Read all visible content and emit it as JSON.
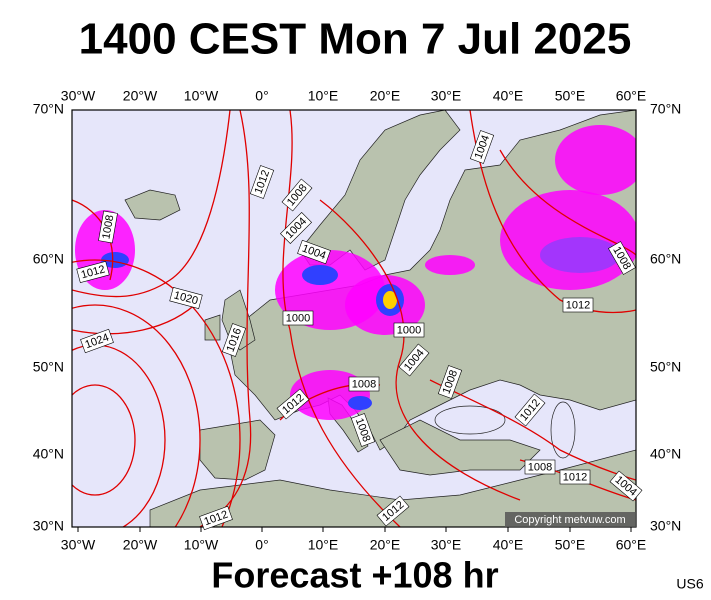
{
  "header": {
    "title": "1400 CEST Mon 7 Jul 2025"
  },
  "map": {
    "lon_labels": [
      "30°W",
      "20°W",
      "10°W",
      "0°",
      "10°E",
      "20°E",
      "30°E",
      "40°E",
      "50°E",
      "60°E"
    ],
    "lat_labels": [
      "70°N",
      "60°N",
      "50°N",
      "40°N",
      "30°N"
    ],
    "isobar_labels": [
      "1004",
      "1012",
      "1008",
      "1008",
      "1004",
      "1004",
      "1012",
      "1008",
      "1020",
      "1012",
      "1000",
      "1000",
      "1024",
      "1016",
      "1004",
      "1008",
      "1008",
      "1012",
      "1012",
      "1008",
      "1008",
      "1012",
      "1004",
      "1012",
      "1012"
    ],
    "copyright": "Copyright metvuw.com"
  },
  "footer": {
    "forecast": "Forecast +108 hr",
    "code": "US6"
  }
}
